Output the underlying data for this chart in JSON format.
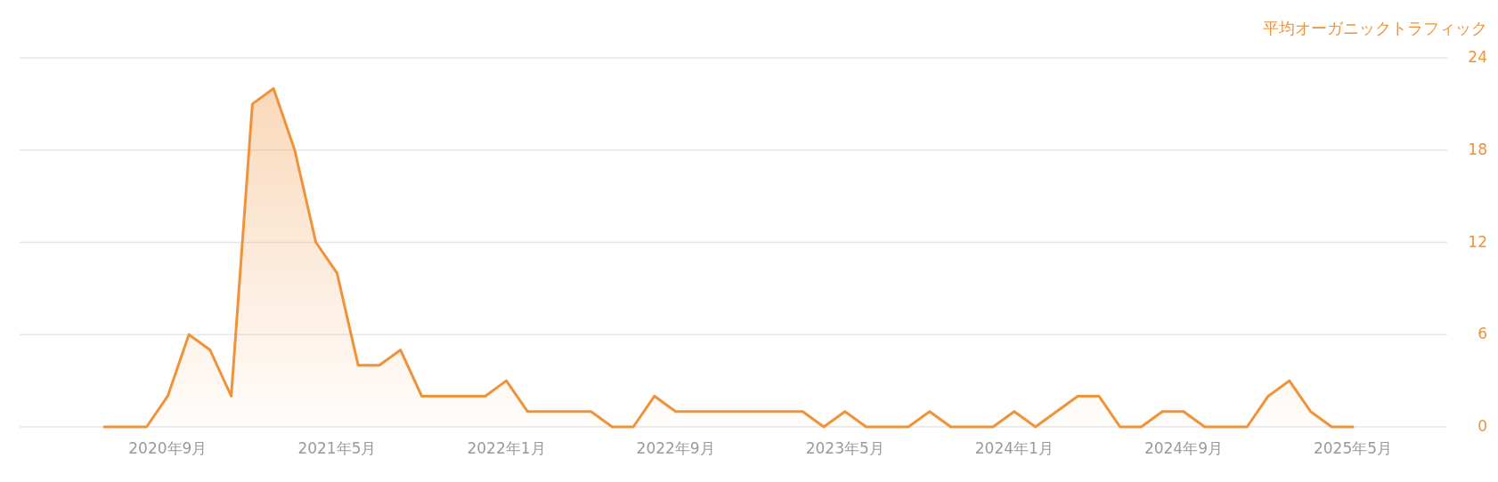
{
  "chart_data": {
    "type": "area",
    "ylabel": "平均オーガニックトラフィック",
    "x": [
      "2020-06",
      "2020-07",
      "2020-08",
      "2020-09",
      "2020-10",
      "2020-11",
      "2020-12",
      "2021-01",
      "2021-02",
      "2021-03",
      "2021-04",
      "2021-05",
      "2021-06",
      "2021-07",
      "2021-08",
      "2021-09",
      "2021-10",
      "2021-11",
      "2021-12",
      "2022-01",
      "2022-02",
      "2022-03",
      "2022-04",
      "2022-05",
      "2022-06",
      "2022-07",
      "2022-08",
      "2022-09",
      "2022-10",
      "2022-11",
      "2022-12",
      "2023-01",
      "2023-02",
      "2023-03",
      "2023-04",
      "2023-05",
      "2023-06",
      "2023-07",
      "2023-08",
      "2023-09",
      "2023-10",
      "2023-11",
      "2023-12",
      "2024-01",
      "2024-02",
      "2024-03",
      "2024-04",
      "2024-05",
      "2024-06",
      "2024-07",
      "2024-08",
      "2024-09",
      "2024-10",
      "2024-11",
      "2024-12",
      "2025-01",
      "2025-02",
      "2025-03",
      "2025-04",
      "2025-05"
    ],
    "series": [
      {
        "color": "#f0923a",
        "values": [
          0,
          0,
          0,
          2,
          6,
          5,
          2,
          21,
          22,
          18,
          12,
          10,
          4,
          4,
          5,
          2,
          2,
          2,
          2,
          3,
          1,
          1,
          1,
          1,
          0,
          0,
          2,
          1,
          1,
          1,
          1,
          1,
          1,
          1,
          0,
          1,
          0,
          0,
          0,
          1,
          0,
          0,
          0,
          1,
          0,
          1,
          2,
          2,
          0,
          0,
          1,
          1,
          0,
          0,
          0,
          2,
          3,
          1,
          0,
          0
        ]
      }
    ],
    "xlim": [
      "2020-02-01",
      "2025-09-15"
    ],
    "xticks": [
      {
        "value": "2020-09",
        "label": "2020年9月"
      },
      {
        "value": "2021-05",
        "label": "2021年5月"
      },
      {
        "value": "2022-01",
        "label": "2022年1月"
      },
      {
        "value": "2022-09",
        "label": "2022年9月"
      },
      {
        "value": "2023-05",
        "label": "2023年5月"
      },
      {
        "value": "2024-01",
        "label": "2024年1月"
      },
      {
        "value": "2024-09",
        "label": "2024年9月"
      },
      {
        "value": "2025-05",
        "label": "2025年5月"
      }
    ],
    "ylim": [
      0,
      24
    ],
    "yticks": [
      0,
      6,
      12,
      18,
      24
    ],
    "grid": "y",
    "marker": "none",
    "line_style": "solid"
  }
}
